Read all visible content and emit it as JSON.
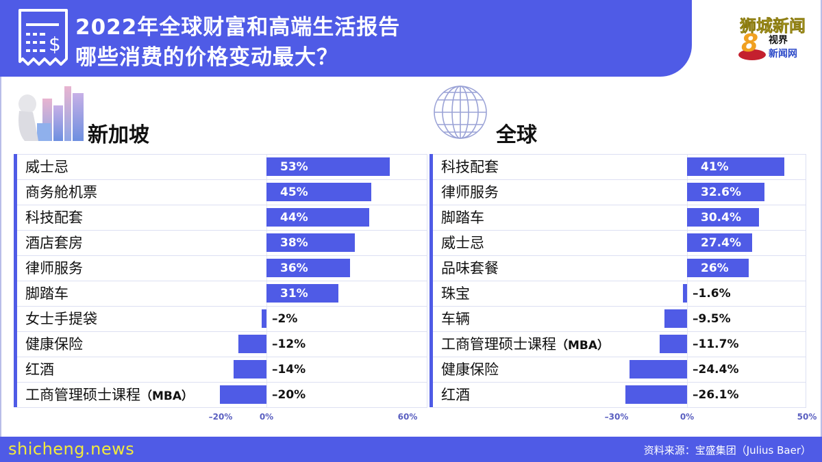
{
  "header": {
    "title_line1": "2022年全球财富和高端生活报告",
    "title_line2": "哪些消费的价格变动最大？",
    "icon": "receipt-dollar-icon",
    "bg_color": "#4f5be6"
  },
  "logo": {
    "line1": "狮城新闻",
    "digit": "8",
    "line2": "视界",
    "line3": "新闻网"
  },
  "sections": {
    "singapore": {
      "title": "新加坡",
      "icon": "singapore-skyline-icon"
    },
    "global": {
      "title": "全球",
      "icon": "globe-icon"
    }
  },
  "chart_data": [
    {
      "type": "bar",
      "orientation": "horizontal",
      "title": "新加坡",
      "categories": [
        "威士忌",
        "商务舱机票",
        "科技配套",
        "酒店套房",
        "律师服务",
        "脚踏车",
        "女士手提袋",
        "健康保险",
        "红酒",
        "工商管理硕士课程（MBA）"
      ],
      "values": [
        53,
        45,
        44,
        38,
        36,
        31,
        -2,
        -12,
        -14,
        -20
      ],
      "labels": [
        "53%",
        "45%",
        "44%",
        "38%",
        "36%",
        "31%",
        "–2%",
        "–12%",
        "–14%",
        "–20%"
      ],
      "xticks": [
        "–20%",
        "0%",
        "60%"
      ],
      "xlim": [
        -27,
        60
      ],
      "unit": "%",
      "bar_color": "#4f5be6"
    },
    {
      "type": "bar",
      "orientation": "horizontal",
      "title": "全球",
      "categories": [
        "科技配套",
        "律师服务",
        "脚踏车",
        "威士忌",
        "品味套餐",
        "珠宝",
        "车辆",
        "工商管理硕士课程（MBA）",
        "健康保险",
        "红酒"
      ],
      "values": [
        41,
        32.6,
        30.4,
        27.4,
        26,
        -1.6,
        -9.5,
        -11.7,
        -24.4,
        -26.1
      ],
      "labels": [
        "41%",
        "32.6%",
        "30.4%",
        "27.4%",
        "26%",
        "–1.6%",
        "–9.5%",
        "–11.7%",
        "–24.4%",
        "–26.1%"
      ],
      "xticks": [
        "–30%",
        "0%",
        "50%"
      ],
      "xlim": [
        -35,
        50
      ],
      "unit": "%",
      "bar_color": "#4f5be6"
    }
  ],
  "footer": {
    "site": "shicheng.news",
    "source": "资料来源：宝盛集团（Julius Baer）"
  }
}
